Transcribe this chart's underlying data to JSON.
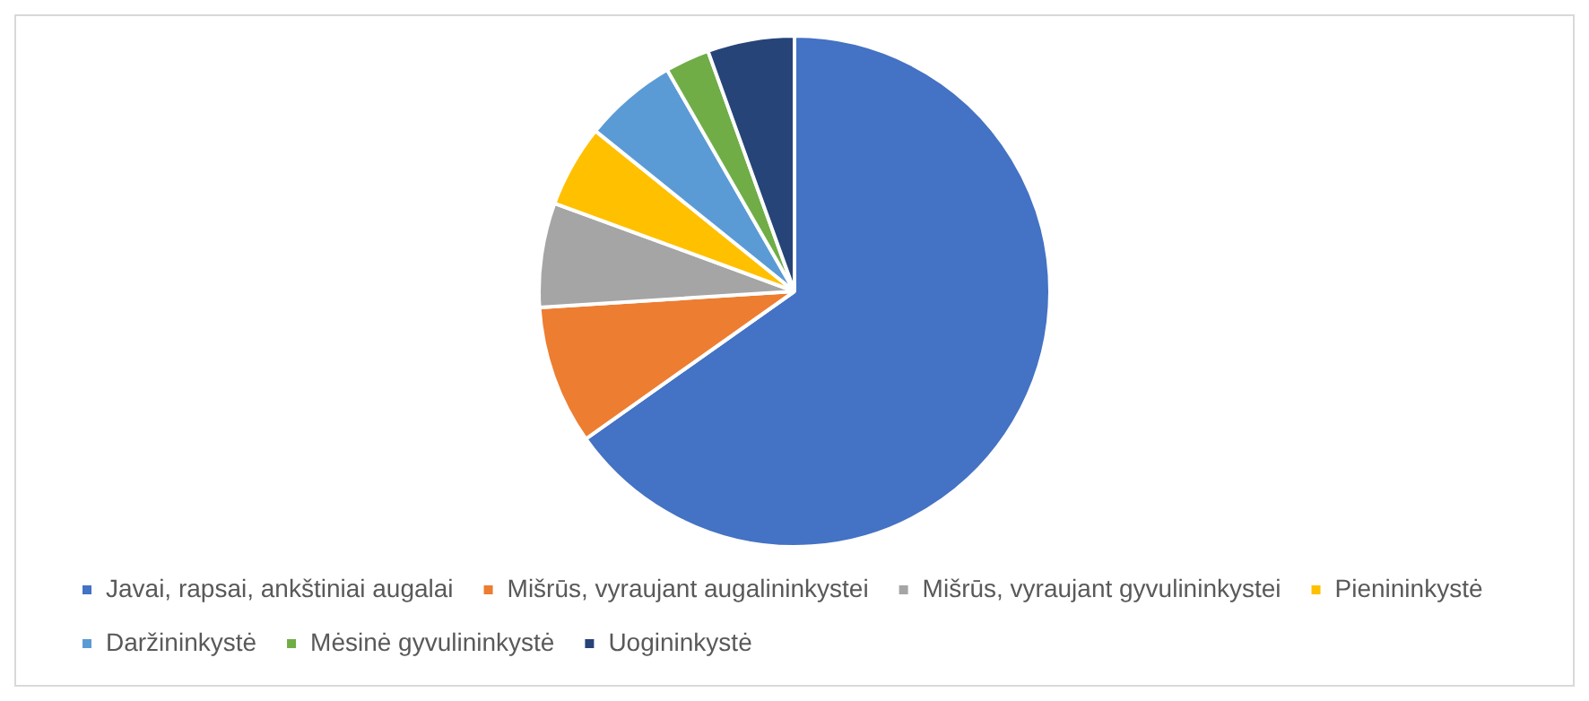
{
  "chart_data": {
    "type": "pie",
    "categories": [
      "Javai, rapsai, ankštiniai augalai",
      "Mišrūs, vyraujant augalininkystei",
      "Mišrūs, vyraujant gyvulininkystei",
      "Pienininkystė",
      "Daržininkystė",
      "Mėsinė gyvulininkystė",
      "Uogininkystė"
    ],
    "values": [
      65.2,
      8.8,
      6.6,
      5.2,
      5.9,
      2.8,
      5.5
    ],
    "colors": [
      "#4472c4",
      "#ed7d31",
      "#a5a5a5",
      "#ffc000",
      "#5b9bd5",
      "#70ad47",
      "#264478"
    ],
    "legend": "bottom"
  }
}
